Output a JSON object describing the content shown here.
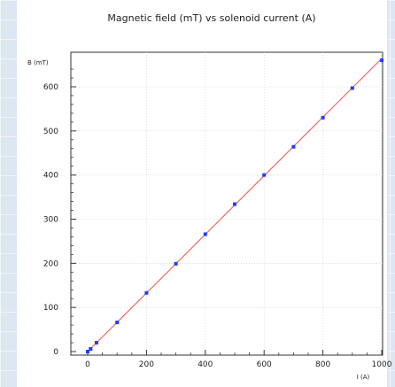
{
  "chart_data": {
    "type": "scatter",
    "title": "Magnetic field (mT) vs solenoid current (A)",
    "xlabel": "I (A)",
    "ylabel": "B (mT)",
    "xlim": [
      0,
      1000
    ],
    "ylim": [
      0,
      650
    ],
    "x_ticks": [
      0,
      200,
      400,
      600,
      800,
      1000
    ],
    "y_ticks": [
      0,
      100,
      200,
      300,
      400,
      500,
      600
    ],
    "grid": true,
    "legend": "none",
    "series": [
      {
        "style": "points",
        "color": "#1f3cff",
        "points": [
          {
            "x": 0,
            "y": 0
          },
          {
            "x": 10,
            "y": 6
          },
          {
            "x": 30,
            "y": 20
          },
          {
            "x": 100,
            "y": 66
          },
          {
            "x": 200,
            "y": 133
          },
          {
            "x": 300,
            "y": 199
          },
          {
            "x": 400,
            "y": 266
          },
          {
            "x": 500,
            "y": 334
          },
          {
            "x": 600,
            "y": 400
          },
          {
            "x": 700,
            "y": 464
          },
          {
            "x": 800,
            "y": 530
          },
          {
            "x": 900,
            "y": 597
          },
          {
            "x": 1000,
            "y": 660
          }
        ]
      },
      {
        "style": "fit-line",
        "color": "#f06a6a",
        "points": [
          {
            "x": 0,
            "y": 0
          },
          {
            "x": 1000,
            "y": 664
          }
        ]
      }
    ]
  }
}
